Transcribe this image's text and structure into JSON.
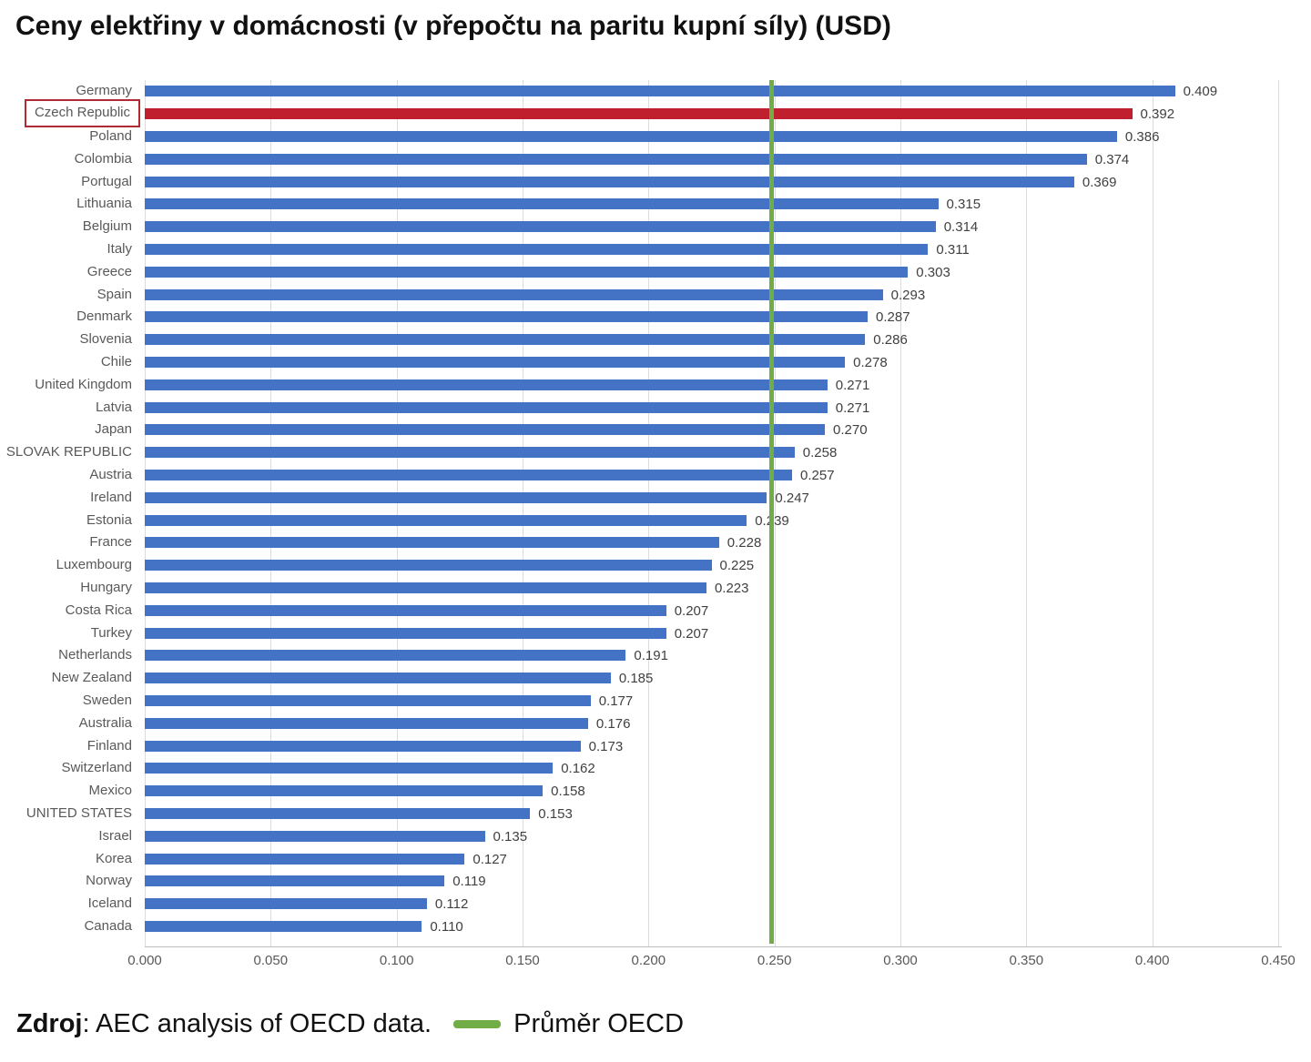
{
  "title": "Ceny elektřiny v domácnosti (v přepočtu na paritu kupní síly) (USD)",
  "chart_data": {
    "type": "bar",
    "orientation": "horizontal",
    "title": "Ceny elektřiny v domácnosti (v přepočtu na paritu kupní síly) (USD)",
    "categories": [
      "Germany",
      "Czech Republic",
      "Poland",
      "Colombia",
      "Portugal",
      "Lithuania",
      "Belgium",
      "Italy",
      "Greece",
      "Spain",
      "Denmark",
      "Slovenia",
      "Chile",
      "United Kingdom",
      "Latvia",
      "Japan",
      "SLOVAK REPUBLIC",
      "Austria",
      "Ireland",
      "Estonia",
      "France",
      "Luxembourg",
      "Hungary",
      "Costa Rica",
      "Turkey",
      "Netherlands",
      "New Zealand",
      "Sweden",
      "Australia",
      "Finland",
      "Switzerland",
      "Mexico",
      "UNITED STATES",
      "Israel",
      "Korea",
      "Norway",
      "Iceland",
      "Canada"
    ],
    "values": [
      0.409,
      0.392,
      0.386,
      0.374,
      0.369,
      0.315,
      0.314,
      0.311,
      0.303,
      0.293,
      0.287,
      0.286,
      0.278,
      0.271,
      0.271,
      0.27,
      0.258,
      0.257,
      0.247,
      0.239,
      0.228,
      0.225,
      0.223,
      0.207,
      0.207,
      0.191,
      0.185,
      0.177,
      0.176,
      0.173,
      0.162,
      0.158,
      0.153,
      0.135,
      0.127,
      0.119,
      0.112,
      0.11
    ],
    "value_label_decimals": 3,
    "highlight_index": 1,
    "bar_color": "#4472c4",
    "highlight_color": "#c0202e",
    "highlight_box_color": "#b02a33",
    "reference_line": {
      "value": 0.249,
      "color": "#70ad47",
      "label": "Průměr OECD"
    },
    "xlim": [
      0,
      0.45
    ],
    "x_ticks": [
      0,
      0.05,
      0.1,
      0.15,
      0.2,
      0.25,
      0.3,
      0.35,
      0.4,
      0.45
    ],
    "x_tick_decimals": 3,
    "grid": true,
    "xlabel": "",
    "ylabel": ""
  },
  "footer": {
    "source_label_bold": "Zdroj",
    "source_label_rest": ": AEC analysis of OECD data.",
    "legend": {
      "label": "Průměr OECD",
      "color": "#70ad47"
    }
  }
}
